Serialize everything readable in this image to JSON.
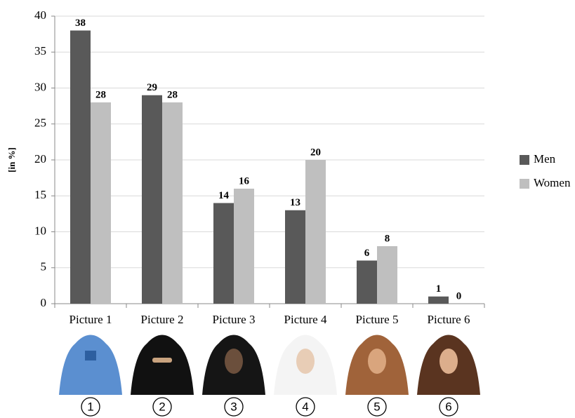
{
  "chart_data": {
    "type": "bar",
    "y_axis_label": "[in %]",
    "categories": [
      "Picture 1",
      "Picture 2",
      "Picture 3",
      "Picture 4",
      "Picture 5",
      "Picture 6"
    ],
    "series": [
      {
        "name": "Men",
        "color": "#595959",
        "values": [
          38,
          29,
          14,
          13,
          6,
          1
        ]
      },
      {
        "name": "Women",
        "color": "#bfbfbf",
        "values": [
          28,
          28,
          16,
          20,
          8,
          0
        ]
      }
    ],
    "ylim": [
      0,
      40
    ],
    "yticks": [
      0,
      5,
      10,
      15,
      20,
      25,
      30,
      35,
      40
    ],
    "grid": true,
    "legend": "right",
    "image_labels": [
      "1",
      "2",
      "3",
      "4",
      "5",
      "6"
    ]
  }
}
